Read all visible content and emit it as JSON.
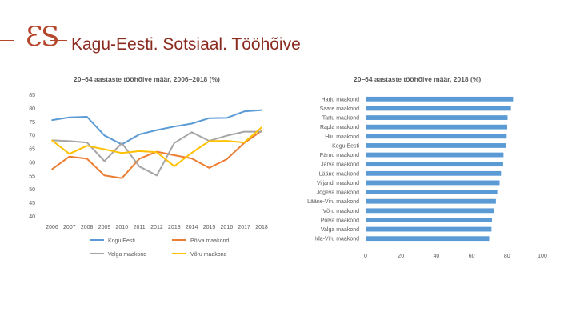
{
  "logo": {
    "text": "ƐS"
  },
  "header": {
    "title": "Kagu-Eesti. Sotsiaal. Tööhõive"
  },
  "chart_data": [
    {
      "type": "line",
      "title": "20–64 aastaste tööhõive määr, 2006–2018 (%)",
      "categories": [
        "2006",
        "2007",
        "2008",
        "2009",
        "2010",
        "2011",
        "2012",
        "2013",
        "2014",
        "2015",
        "2016",
        "2017",
        "2018"
      ],
      "ylim": [
        40,
        85
      ],
      "yticks": [
        40,
        45,
        50,
        55,
        60,
        65,
        70,
        75,
        80,
        85
      ],
      "grid": false,
      "legend": "bottom",
      "series": [
        {
          "name": "Kogu Eesti",
          "color": "#5b9bd5",
          "values": [
            75.5,
            76.5,
            76.7,
            69.8,
            66.5,
            70.2,
            71.8,
            73.1,
            74.2,
            76.2,
            76.3,
            78.7,
            79.2
          ]
        },
        {
          "name": "Põlva maakond",
          "color": "#ed7d31",
          "values": [
            57.3,
            62,
            61.2,
            55,
            54,
            61.2,
            63.8,
            62.5,
            61.3,
            57.8,
            61,
            67,
            71.5
          ]
        },
        {
          "name": "Valga maakond",
          "color": "#a5a5a5",
          "values": [
            68,
            67.7,
            67.2,
            60.3,
            67,
            58.3,
            55,
            67,
            71,
            67.8,
            69.7,
            71.2,
            71.2
          ]
        },
        {
          "name": "Võru maakond",
          "color": "#ffc000",
          "values": [
            68,
            63,
            66,
            64.7,
            63.3,
            64,
            63.6,
            58.4,
            63.4,
            67.7,
            67.8,
            67.2,
            72.8
          ]
        }
      ]
    },
    {
      "type": "bar",
      "orientation": "horizontal",
      "title": "20–64 aastaste tööhõive määr, 2018 (%)",
      "color": "#5b9bd5",
      "categories": [
        "Harju maakond",
        "Saare maakond",
        "Tartu maakond",
        "Rapla maakond",
        "Hiiu maakond",
        "Kogu Eesti",
        "Pärnu maakond",
        "Järva maakond",
        "Lääne maakond",
        "Viljandi maakond",
        "Jõgeva maakond",
        "Lääne-Viru maakond",
        "Võru maakond",
        "Põlva maakond",
        "Valga maakond",
        "Ida-Viru maakond"
      ],
      "values": [
        83.4,
        82.2,
        80.3,
        80.1,
        79.8,
        79.2,
        78,
        77.8,
        76.6,
        75.8,
        74.5,
        73.7,
        72.8,
        71.5,
        71.2,
        69.9
      ],
      "xlim": [
        0,
        100
      ],
      "xticks": [
        0,
        20,
        40,
        60,
        80,
        100
      ],
      "grid": false
    }
  ]
}
